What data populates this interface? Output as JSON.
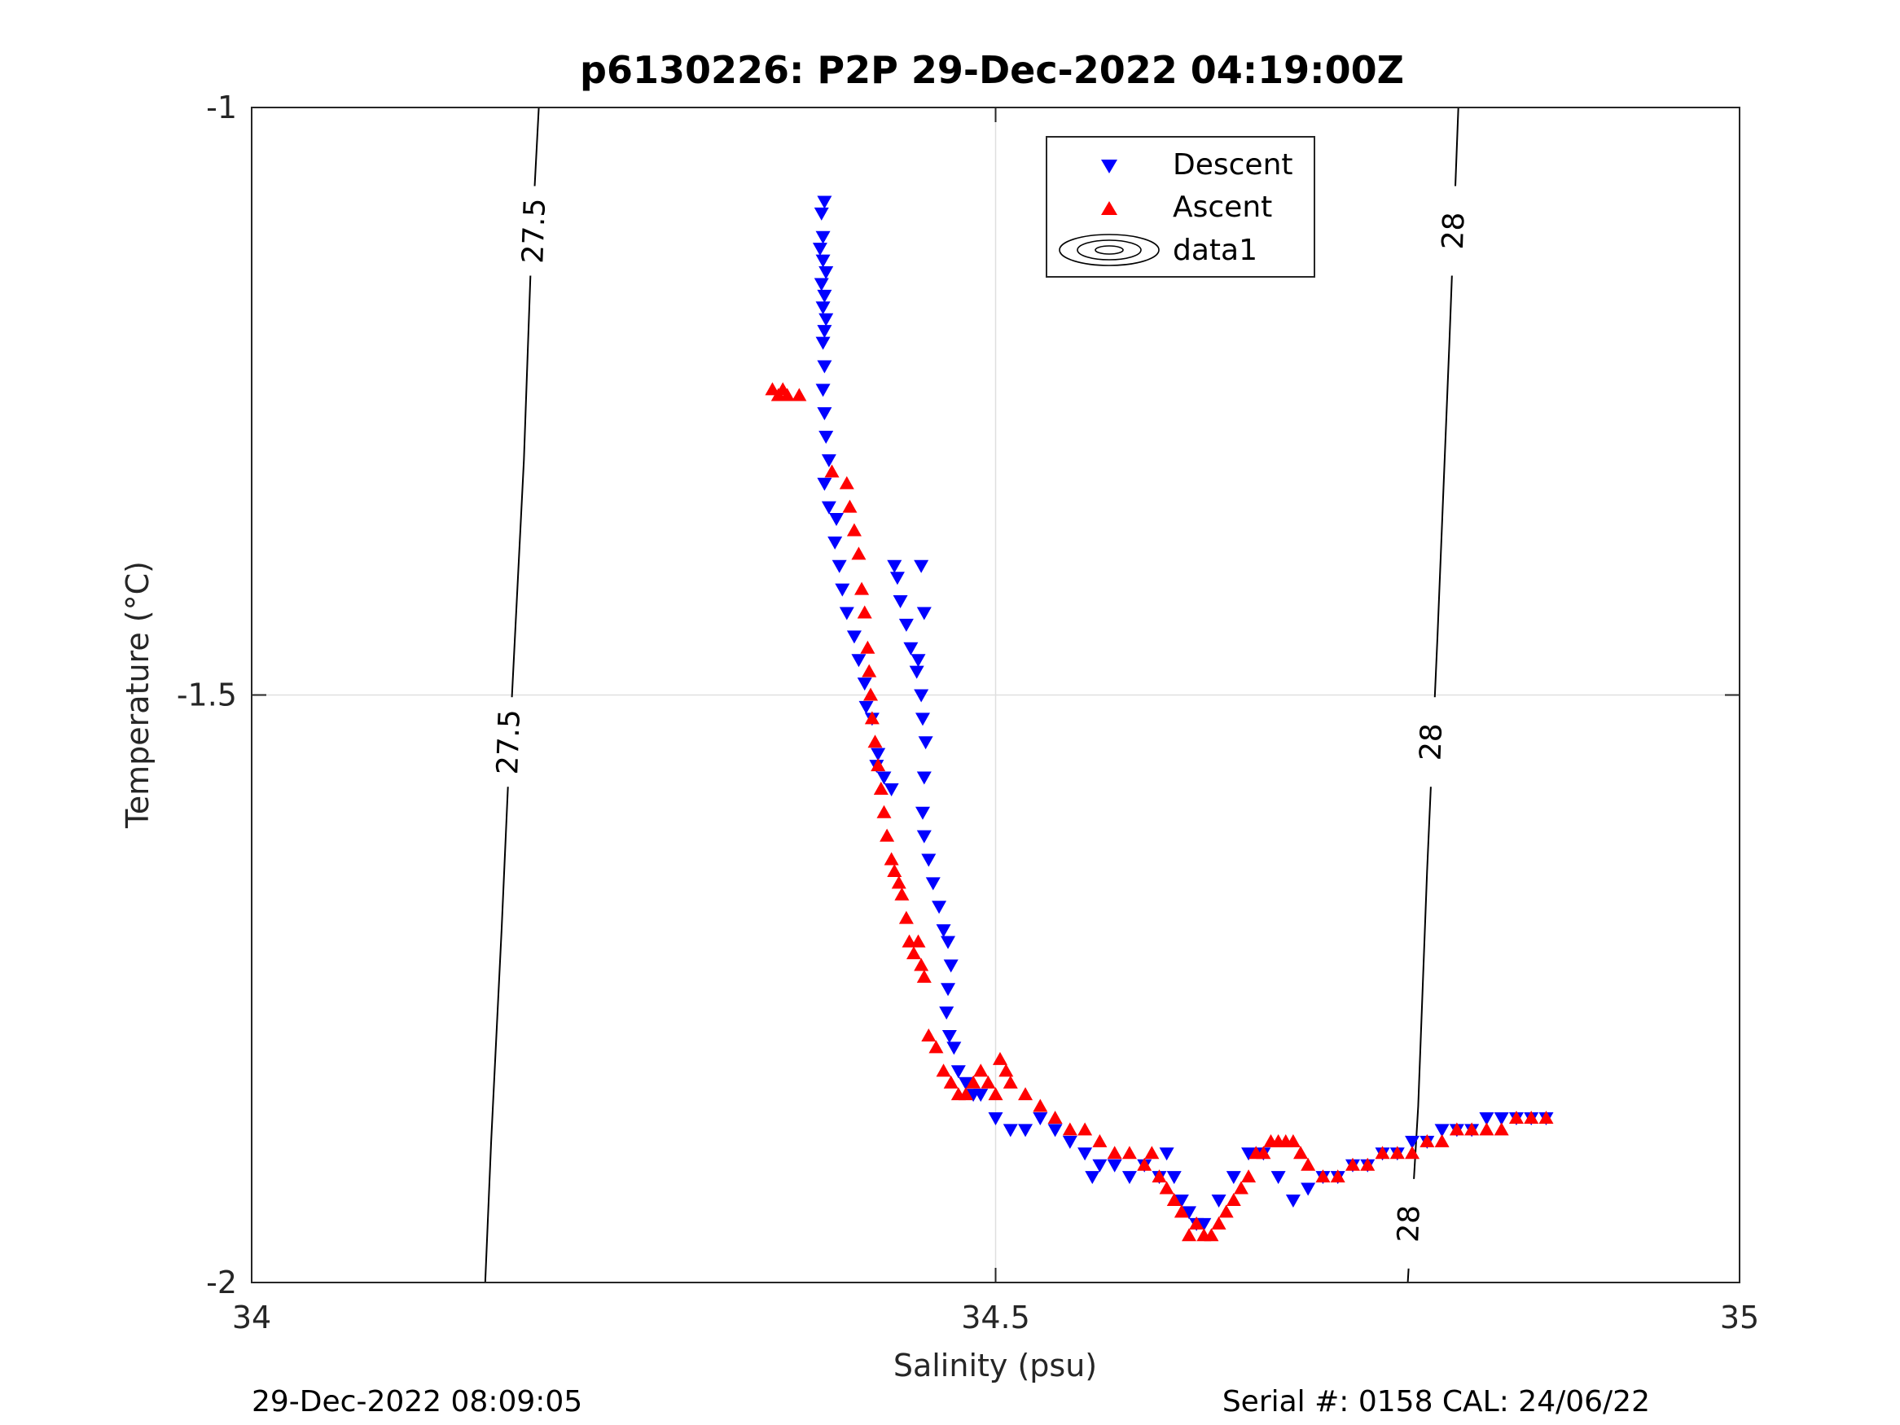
{
  "chart_data": {
    "type": "scatter",
    "title": "p6130226: P2P 29-Dec-2022 04:19:00Z",
    "xlabel": "Salinity (psu)",
    "ylabel": "Temperature (°C)",
    "xlim": [
      34,
      35
    ],
    "ylim": [
      -2,
      -1
    ],
    "x_ticks": [
      34,
      34.5,
      35
    ],
    "y_ticks": [
      -2,
      -1.5,
      -1
    ],
    "x_tick_labels": [
      "34",
      "34.5",
      "35"
    ],
    "y_tick_labels": [
      "-2",
      "-1.5",
      "-1"
    ],
    "grid": true,
    "legend_position": "top-center",
    "footer_left": "29-Dec-2022 08:09:05",
    "footer_right": "Serial #: 0158  CAL: 24/06/22",
    "colors": {
      "descent": "#0000ff",
      "ascent": "#ff0000",
      "axis": "#262626",
      "grid": "#dfdfdf",
      "contour": "#000000"
    },
    "series": [
      {
        "name": "Descent",
        "marker": "triangle-down",
        "color": "#0000ff",
        "points": [
          [
            34.385,
            -1.08
          ],
          [
            34.383,
            -1.09
          ],
          [
            34.384,
            -1.11
          ],
          [
            34.382,
            -1.12
          ],
          [
            34.384,
            -1.13
          ],
          [
            34.386,
            -1.14
          ],
          [
            34.383,
            -1.15
          ],
          [
            34.385,
            -1.16
          ],
          [
            34.384,
            -1.17
          ],
          [
            34.386,
            -1.18
          ],
          [
            34.385,
            -1.19
          ],
          [
            34.384,
            -1.2
          ],
          [
            34.385,
            -1.22
          ],
          [
            34.384,
            -1.24
          ],
          [
            34.385,
            -1.26
          ],
          [
            34.386,
            -1.28
          ],
          [
            34.388,
            -1.3
          ],
          [
            34.385,
            -1.32
          ],
          [
            34.388,
            -1.34
          ],
          [
            34.393,
            -1.35
          ],
          [
            34.392,
            -1.37
          ],
          [
            34.395,
            -1.39
          ],
          [
            34.397,
            -1.41
          ],
          [
            34.4,
            -1.43
          ],
          [
            34.405,
            -1.45
          ],
          [
            34.408,
            -1.47
          ],
          [
            34.412,
            -1.49
          ],
          [
            34.413,
            -1.51
          ],
          [
            34.417,
            -1.52
          ],
          [
            34.421,
            -1.55
          ],
          [
            34.42,
            -1.56
          ],
          [
            34.425,
            -1.57
          ],
          [
            34.43,
            -1.58
          ],
          [
            34.432,
            -1.39
          ],
          [
            34.434,
            -1.4
          ],
          [
            34.436,
            -1.42
          ],
          [
            34.44,
            -1.44
          ],
          [
            34.443,
            -1.46
          ],
          [
            34.447,
            -1.48
          ],
          [
            34.45,
            -1.39
          ],
          [
            34.452,
            -1.43
          ],
          [
            34.448,
            -1.47
          ],
          [
            34.45,
            -1.5
          ],
          [
            34.451,
            -1.52
          ],
          [
            34.453,
            -1.54
          ],
          [
            34.452,
            -1.57
          ],
          [
            34.451,
            -1.6
          ],
          [
            34.452,
            -1.62
          ],
          [
            34.455,
            -1.64
          ],
          [
            34.458,
            -1.66
          ],
          [
            34.462,
            -1.68
          ],
          [
            34.465,
            -1.7
          ],
          [
            34.468,
            -1.71
          ],
          [
            34.47,
            -1.73
          ],
          [
            34.468,
            -1.75
          ],
          [
            34.467,
            -1.77
          ],
          [
            34.469,
            -1.79
          ],
          [
            34.472,
            -1.8
          ],
          [
            34.475,
            -1.82
          ],
          [
            34.48,
            -1.83
          ],
          [
            34.485,
            -1.84
          ],
          [
            34.49,
            -1.84
          ],
          [
            34.5,
            -1.86
          ],
          [
            34.51,
            -1.87
          ],
          [
            34.52,
            -1.87
          ],
          [
            34.53,
            -1.86
          ],
          [
            34.54,
            -1.87
          ],
          [
            34.55,
            -1.88
          ],
          [
            34.56,
            -1.89
          ],
          [
            34.565,
            -1.91
          ],
          [
            34.57,
            -1.9
          ],
          [
            34.58,
            -1.9
          ],
          [
            34.59,
            -1.91
          ],
          [
            34.6,
            -1.9
          ],
          [
            34.61,
            -1.91
          ],
          [
            34.615,
            -1.89
          ],
          [
            34.62,
            -1.91
          ],
          [
            34.625,
            -1.93
          ],
          [
            34.63,
            -1.94
          ],
          [
            34.635,
            -1.95
          ],
          [
            34.64,
            -1.95
          ],
          [
            34.65,
            -1.93
          ],
          [
            34.66,
            -1.91
          ],
          [
            34.67,
            -1.89
          ],
          [
            34.68,
            -1.89
          ],
          [
            34.69,
            -1.91
          ],
          [
            34.7,
            -1.93
          ],
          [
            34.71,
            -1.92
          ],
          [
            34.72,
            -1.91
          ],
          [
            34.73,
            -1.91
          ],
          [
            34.74,
            -1.9
          ],
          [
            34.75,
            -1.9
          ],
          [
            34.76,
            -1.89
          ],
          [
            34.77,
            -1.89
          ],
          [
            34.78,
            -1.88
          ],
          [
            34.79,
            -1.88
          ],
          [
            34.8,
            -1.87
          ],
          [
            34.81,
            -1.87
          ],
          [
            34.82,
            -1.87
          ],
          [
            34.83,
            -1.86
          ],
          [
            34.84,
            -1.86
          ],
          [
            34.85,
            -1.86
          ],
          [
            34.86,
            -1.86
          ],
          [
            34.87,
            -1.86
          ]
        ]
      },
      {
        "name": "Ascent",
        "marker": "triangle-up",
        "color": "#ff0000",
        "points": [
          [
            34.35,
            -1.24
          ],
          [
            34.354,
            -1.245
          ],
          [
            34.357,
            -1.24
          ],
          [
            34.36,
            -1.245
          ],
          [
            34.368,
            -1.245
          ],
          [
            34.39,
            -1.31
          ],
          [
            34.4,
            -1.32
          ],
          [
            34.402,
            -1.34
          ],
          [
            34.405,
            -1.36
          ],
          [
            34.408,
            -1.38
          ],
          [
            34.41,
            -1.41
          ],
          [
            34.412,
            -1.43
          ],
          [
            34.414,
            -1.46
          ],
          [
            34.415,
            -1.48
          ],
          [
            34.416,
            -1.5
          ],
          [
            34.417,
            -1.52
          ],
          [
            34.419,
            -1.54
          ],
          [
            34.421,
            -1.56
          ],
          [
            34.423,
            -1.58
          ],
          [
            34.425,
            -1.6
          ],
          [
            34.427,
            -1.62
          ],
          [
            34.43,
            -1.64
          ],
          [
            34.432,
            -1.65
          ],
          [
            34.435,
            -1.66
          ],
          [
            34.437,
            -1.67
          ],
          [
            34.44,
            -1.69
          ],
          [
            34.442,
            -1.71
          ],
          [
            34.445,
            -1.72
          ],
          [
            34.448,
            -1.71
          ],
          [
            34.45,
            -1.73
          ],
          [
            34.452,
            -1.74
          ],
          [
            34.455,
            -1.79
          ],
          [
            34.46,
            -1.8
          ],
          [
            34.465,
            -1.82
          ],
          [
            34.47,
            -1.83
          ],
          [
            34.475,
            -1.84
          ],
          [
            34.48,
            -1.84
          ],
          [
            34.485,
            -1.83
          ],
          [
            34.49,
            -1.82
          ],
          [
            34.495,
            -1.83
          ],
          [
            34.5,
            -1.84
          ],
          [
            34.503,
            -1.81
          ],
          [
            34.507,
            -1.82
          ],
          [
            34.51,
            -1.83
          ],
          [
            34.52,
            -1.84
          ],
          [
            34.53,
            -1.85
          ],
          [
            34.54,
            -1.86
          ],
          [
            34.55,
            -1.87
          ],
          [
            34.56,
            -1.87
          ],
          [
            34.57,
            -1.88
          ],
          [
            34.58,
            -1.89
          ],
          [
            34.59,
            -1.89
          ],
          [
            34.6,
            -1.9
          ],
          [
            34.605,
            -1.89
          ],
          [
            34.61,
            -1.91
          ],
          [
            34.615,
            -1.92
          ],
          [
            34.62,
            -1.93
          ],
          [
            34.625,
            -1.94
          ],
          [
            34.63,
            -1.96
          ],
          [
            34.635,
            -1.95
          ],
          [
            34.64,
            -1.96
          ],
          [
            34.645,
            -1.96
          ],
          [
            34.65,
            -1.95
          ],
          [
            34.655,
            -1.94
          ],
          [
            34.66,
            -1.93
          ],
          [
            34.665,
            -1.92
          ],
          [
            34.67,
            -1.91
          ],
          [
            34.675,
            -1.89
          ],
          [
            34.68,
            -1.89
          ],
          [
            34.685,
            -1.88
          ],
          [
            34.69,
            -1.88
          ],
          [
            34.695,
            -1.88
          ],
          [
            34.7,
            -1.88
          ],
          [
            34.705,
            -1.89
          ],
          [
            34.71,
            -1.9
          ],
          [
            34.72,
            -1.91
          ],
          [
            34.73,
            -1.91
          ],
          [
            34.74,
            -1.9
          ],
          [
            34.75,
            -1.9
          ],
          [
            34.76,
            -1.89
          ],
          [
            34.77,
            -1.89
          ],
          [
            34.78,
            -1.89
          ],
          [
            34.79,
            -1.88
          ],
          [
            34.8,
            -1.88
          ],
          [
            34.81,
            -1.87
          ],
          [
            34.82,
            -1.87
          ],
          [
            34.83,
            -1.87
          ],
          [
            34.84,
            -1.87
          ],
          [
            34.85,
            -1.86
          ],
          [
            34.86,
            -1.86
          ],
          [
            34.87,
            -1.86
          ]
        ]
      },
      {
        "name": "data1",
        "kind": "density-contour",
        "color": "#000000",
        "lines": [
          {
            "label": "27.5",
            "points": [
              [
                34.193,
                -1.0
              ],
              [
                34.188,
                -1.12
              ],
              [
                34.183,
                -1.3
              ],
              [
                34.175,
                -1.5
              ],
              [
                34.168,
                -1.7
              ],
              [
                34.161,
                -1.88
              ],
              [
                34.157,
                -2.0
              ]
            ]
          },
          {
            "label": "28",
            "points": [
              [
                34.811,
                -1.0
              ],
              [
                34.805,
                -1.2
              ],
              [
                34.797,
                -1.45
              ],
              [
                34.79,
                -1.65
              ],
              [
                34.784,
                -1.85
              ],
              [
                34.777,
                -2.0
              ]
            ]
          }
        ],
        "labels": [
          {
            "text": "27.5",
            "x": 34.19,
            "y": -1.105
          },
          {
            "text": "27.5",
            "x": 34.173,
            "y": -1.54
          },
          {
            "text": "28",
            "x": 34.808,
            "y": -1.105
          },
          {
            "text": "28",
            "x": 34.793,
            "y": -1.54
          },
          {
            "text": "28",
            "x": 34.778,
            "y": -1.95
          }
        ]
      }
    ]
  }
}
